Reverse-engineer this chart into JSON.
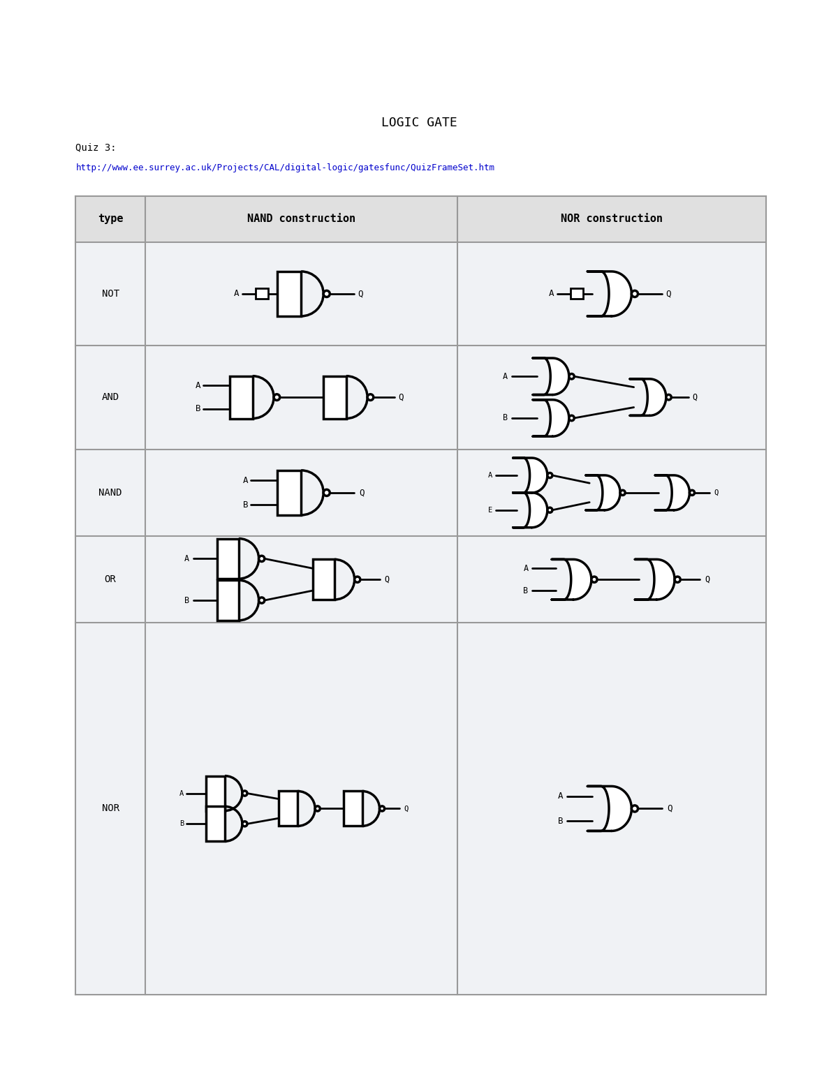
{
  "title": "LOGIC GATE",
  "quiz_text": "Quiz 3:",
  "url_text": "http://www.ee.surrey.ac.uk/Projects/CAL/digital-logic/gatesfunc/QuizFrameSet.htm",
  "header_bg": "#e0e0e0",
  "cell_bg": "#f0f2f5",
  "border_color": "#999999",
  "text_color": "#000000",
  "url_color": "#0000cc",
  "row_labels": [
    "NOT",
    "AND",
    "NAND",
    "OR",
    "NOR"
  ],
  "col_labels": [
    "type",
    "NAND construction",
    "NOR construction"
  ],
  "figsize": [
    12.0,
    15.53
  ],
  "dpi": 100,
  "TL": 1.05,
  "TR": 11.0,
  "TT": 12.75,
  "TB": 1.25,
  "col_divs": [
    1.05,
    2.05,
    6.55,
    11.0
  ],
  "row_divs": [
    12.75,
    12.08,
    10.6,
    9.1,
    7.85,
    6.6,
    1.25
  ]
}
